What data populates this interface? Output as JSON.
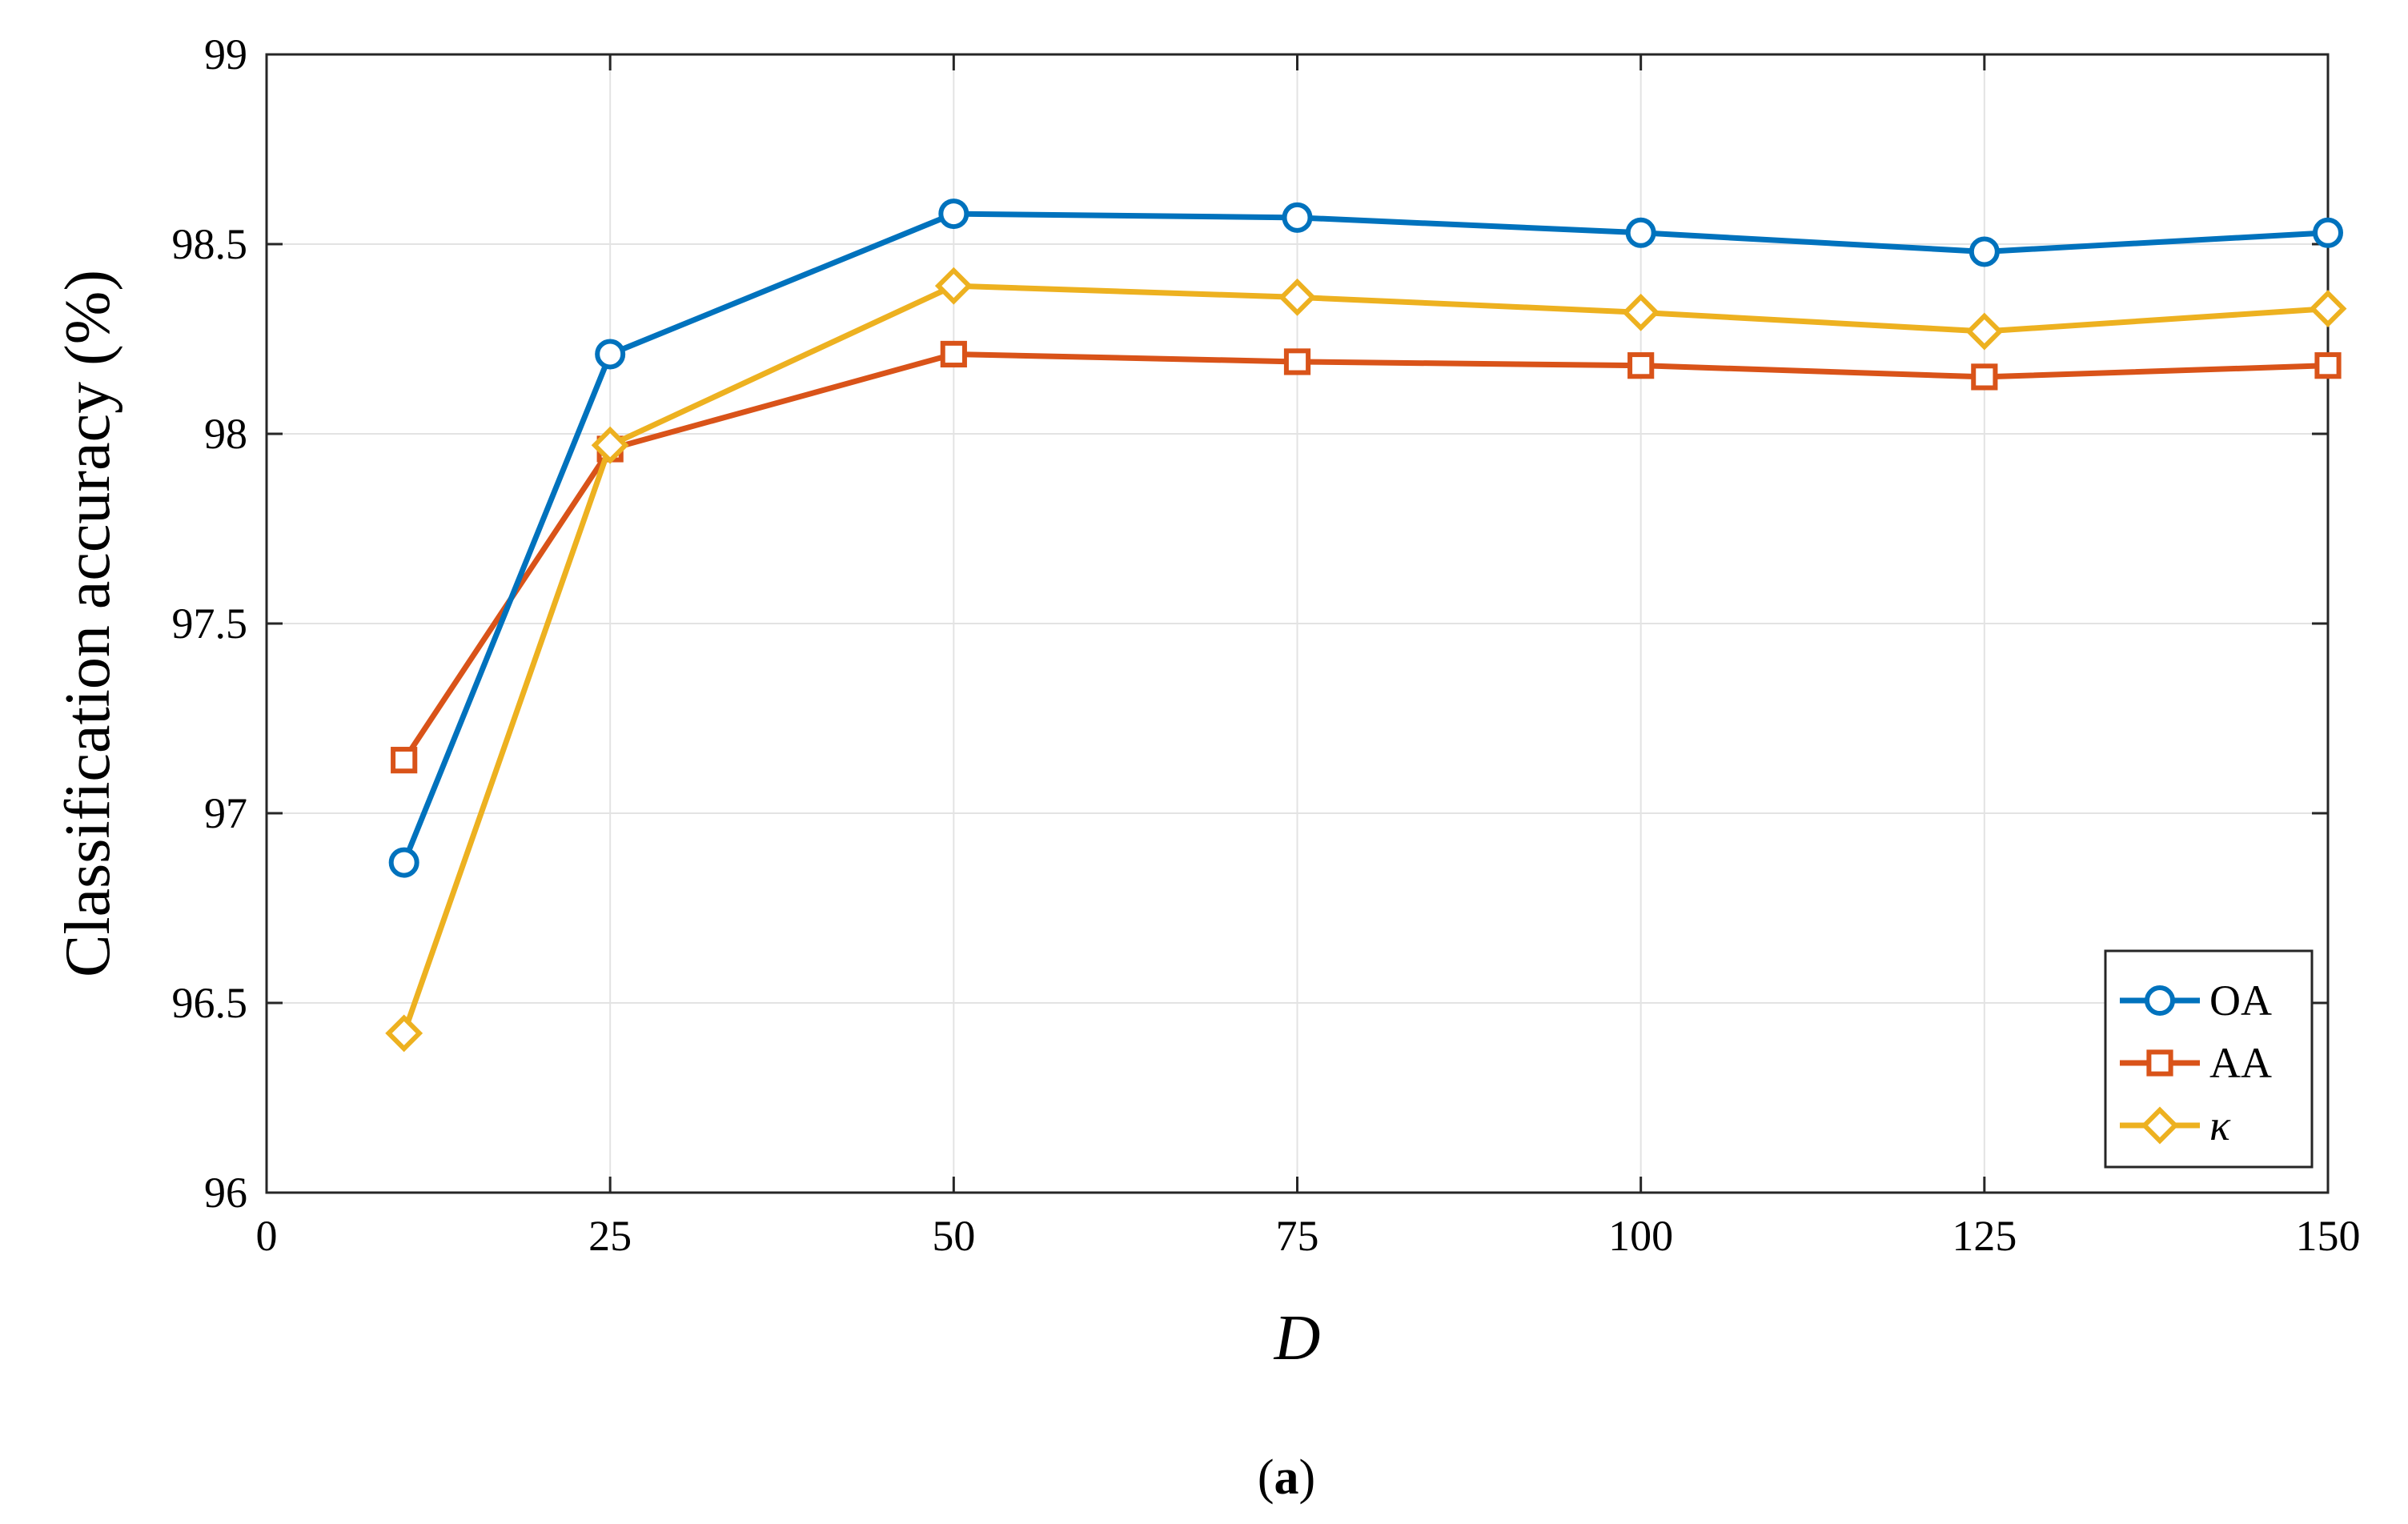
{
  "chart_data": {
    "type": "line",
    "title": "",
    "xlabel": "D",
    "ylabel": "Classification accuracy (%)",
    "xlim": [
      0,
      150
    ],
    "ylim": [
      96,
      99
    ],
    "xticks": [
      0,
      25,
      50,
      75,
      100,
      125,
      150
    ],
    "yticks": [
      96,
      96.5,
      97,
      97.5,
      98,
      98.5,
      99
    ],
    "xtick_labels": [
      "0",
      "25",
      "50",
      "75",
      "100",
      "125",
      "150"
    ],
    "ytick_labels": [
      "96",
      "96.5",
      "97",
      "97.5",
      "98",
      "98.5",
      "99"
    ],
    "grid": true,
    "legend_position": "bottom-right",
    "x": [
      10,
      25,
      50,
      75,
      100,
      125,
      150
    ],
    "series": [
      {
        "name": "OA",
        "marker": "circle",
        "color": "#0072BD",
        "values": [
          96.87,
          98.21,
          98.58,
          98.57,
          98.53,
          98.48,
          98.53
        ]
      },
      {
        "name": "AA",
        "marker": "square",
        "color": "#D95319",
        "values": [
          97.14,
          97.96,
          98.21,
          98.19,
          98.18,
          98.15,
          98.18
        ]
      },
      {
        "name": "κ",
        "marker": "diamond",
        "color": "#EDB120",
        "values": [
          96.42,
          97.97,
          98.39,
          98.36,
          98.32,
          98.27,
          98.33
        ]
      }
    ]
  },
  "caption": {
    "open": "(",
    "letter": "a",
    "close": ")"
  }
}
